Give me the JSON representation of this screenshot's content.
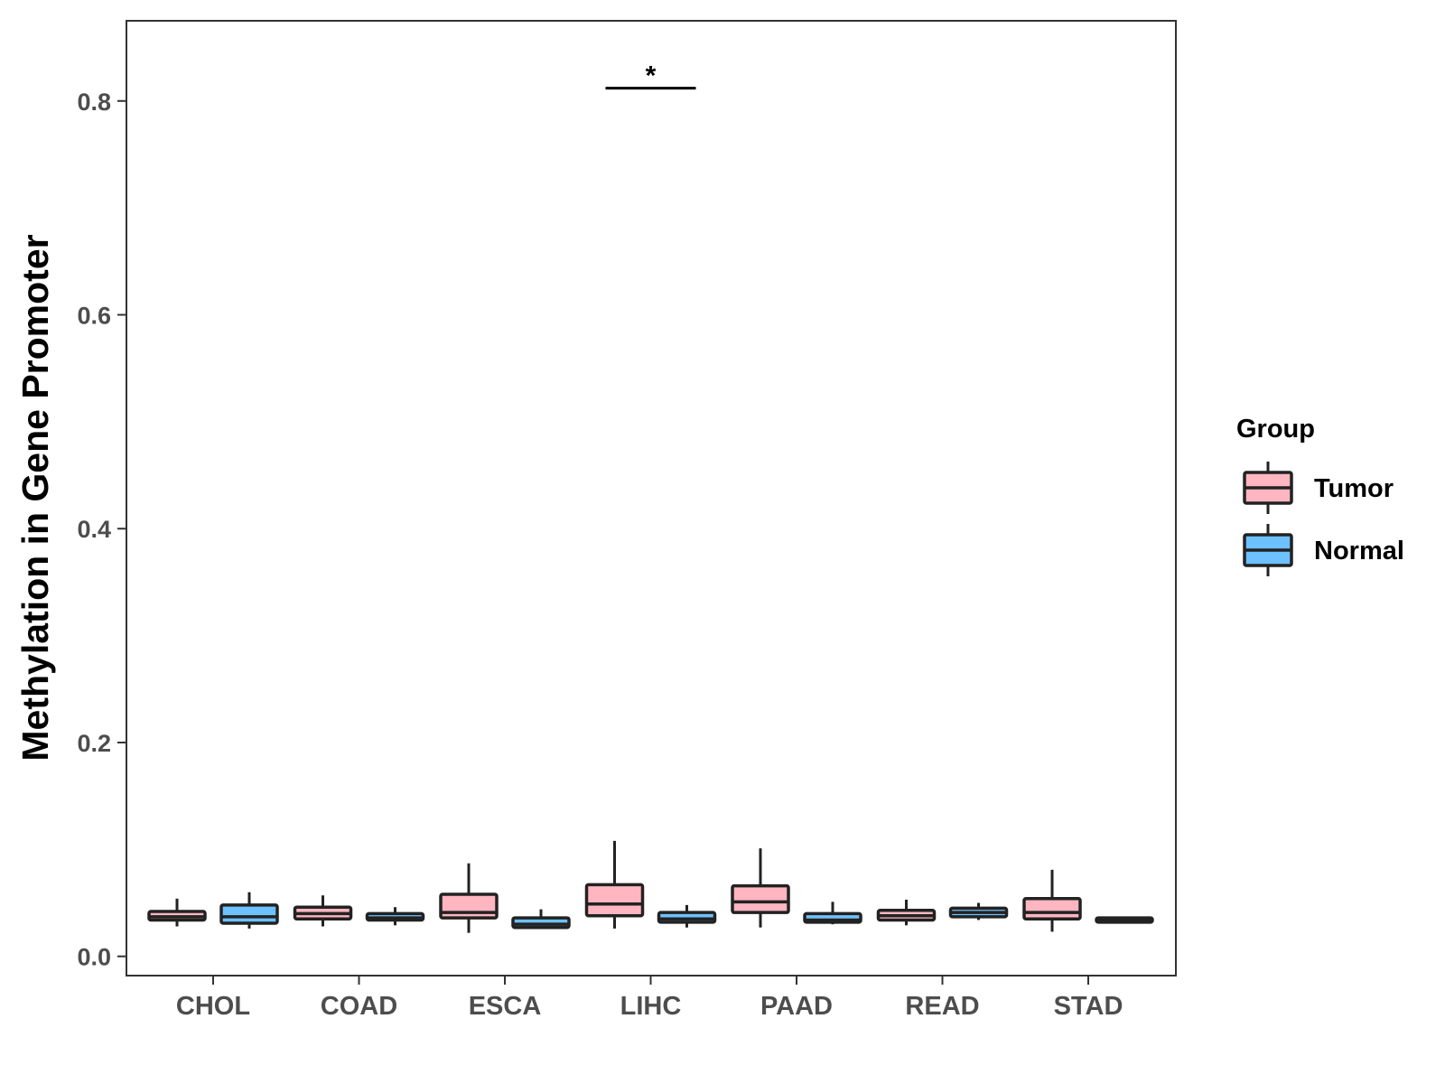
{
  "chart_data": {
    "type": "boxplot",
    "title": "",
    "xlabel": "",
    "ylabel": "Methylation in Gene Promoter",
    "ylim": [
      -0.018,
      0.875
    ],
    "yticks": [
      0.0,
      0.2,
      0.4,
      0.6,
      0.8
    ],
    "ytick_labels": [
      "0.0",
      "0.2",
      "0.4",
      "0.6",
      "0.8"
    ],
    "grid": false,
    "legend": {
      "title": "Group",
      "position": "right",
      "entries": [
        {
          "name": "Tumor",
          "color": "#ffb6c1"
        },
        {
          "name": "Normal",
          "color": "#6ec1ff"
        }
      ]
    },
    "categories": [
      "CHOL",
      "COAD",
      "ESCA",
      "LIHC",
      "PAAD",
      "READ",
      "STAD"
    ],
    "series": [
      {
        "name": "Tumor",
        "color": "#ffb6c1",
        "boxes": [
          {
            "min": 0.028,
            "q1": 0.034,
            "median": 0.037,
            "q3": 0.042,
            "max": 0.054
          },
          {
            "min": 0.028,
            "q1": 0.035,
            "median": 0.04,
            "q3": 0.046,
            "max": 0.057
          },
          {
            "min": 0.022,
            "q1": 0.036,
            "median": 0.041,
            "q3": 0.058,
            "max": 0.087
          },
          {
            "min": 0.026,
            "q1": 0.038,
            "median": 0.049,
            "q3": 0.067,
            "max": 0.108
          },
          {
            "min": 0.027,
            "q1": 0.041,
            "median": 0.051,
            "q3": 0.066,
            "max": 0.101
          },
          {
            "min": 0.029,
            "q1": 0.034,
            "median": 0.038,
            "q3": 0.043,
            "max": 0.053
          },
          {
            "min": 0.023,
            "q1": 0.035,
            "median": 0.041,
            "q3": 0.054,
            "max": 0.081
          }
        ]
      },
      {
        "name": "Normal",
        "color": "#6ec1ff",
        "boxes": [
          {
            "min": 0.026,
            "q1": 0.031,
            "median": 0.037,
            "q3": 0.048,
            "max": 0.06
          },
          {
            "min": 0.029,
            "q1": 0.034,
            "median": 0.036,
            "q3": 0.04,
            "max": 0.046
          },
          {
            "min": 0.026,
            "q1": 0.027,
            "median": 0.03,
            "q3": 0.036,
            "max": 0.044
          },
          {
            "min": 0.027,
            "q1": 0.032,
            "median": 0.035,
            "q3": 0.041,
            "max": 0.048
          },
          {
            "min": 0.03,
            "q1": 0.032,
            "median": 0.034,
            "q3": 0.04,
            "max": 0.051
          },
          {
            "min": 0.034,
            "q1": 0.037,
            "median": 0.041,
            "q3": 0.045,
            "max": 0.05
          },
          {
            "min": 0.032,
            "q1": 0.032,
            "median": 0.034,
            "q3": 0.036,
            "max": 0.036
          }
        ]
      }
    ],
    "annotations": [
      {
        "text": "*",
        "category": "LIHC",
        "y": 0.812,
        "type": "significance-bracket"
      }
    ]
  }
}
